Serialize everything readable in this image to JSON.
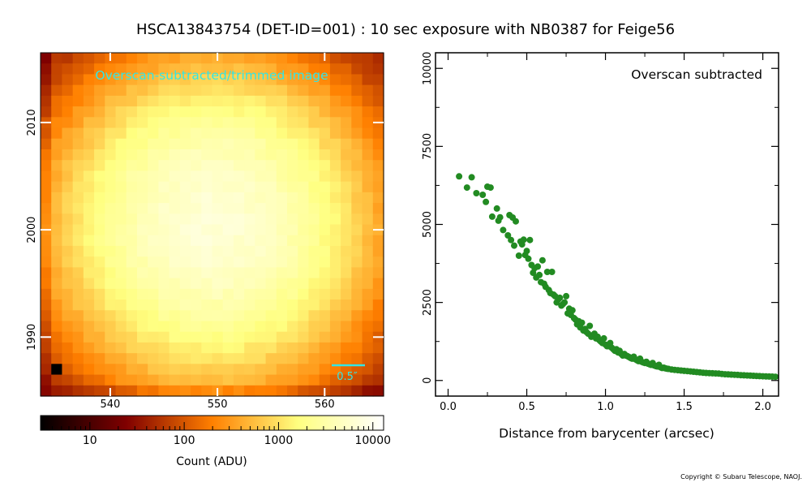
{
  "title": "HSCA13843754 (DET-ID=001) :  10 sec exposure with NB0387 for Feige56",
  "copyright": "Copyright © Subaru Telescope, NAOJ.",
  "colors": {
    "points": "#228b22",
    "image_label": "#33e5e5",
    "scalebar": "#33e5e5",
    "ticks_on_image": "#ffffff"
  },
  "chart_data": [
    {
      "type": "heatmap",
      "annotation": "Overscan-subtracted/trimmed image",
      "scalebar_label": "0.5″",
      "colormap": "afmhot",
      "color_scale": "log",
      "x_range": [
        533.5,
        565.5
      ],
      "y_range": [
        1984.5,
        2016.5
      ],
      "x_ticks": [
        540,
        550,
        560
      ],
      "x_tick_labels": [
        "540",
        "550",
        "560"
      ],
      "y_ticks": [
        1990,
        2000,
        2010
      ],
      "y_tick_labels": [
        "1990",
        "2000",
        "2010"
      ],
      "source_center": [
        549.5,
        2000.5
      ],
      "peak_counts": 6500,
      "background_counts": 25,
      "colorbar": {
        "label": "Count (ADU)",
        "range": [
          3,
          13000
        ],
        "ticks": [
          10,
          100,
          1000,
          10000
        ],
        "tick_labels": [
          "10",
          "100",
          "1000",
          "10000"
        ]
      }
    },
    {
      "type": "scatter",
      "annotation": "Overscan subtracted",
      "xlabel": "Distance from barycenter (arcsec)",
      "ylabel": "",
      "xlim": [
        -0.08,
        2.1
      ],
      "ylim": [
        -500,
        10500
      ],
      "x_ticks": [
        0.0,
        0.5,
        1.0,
        1.5,
        2.0
      ],
      "x_tick_labels": [
        "0.0",
        "0.5",
        "1.0",
        "1.5",
        "2.0"
      ],
      "y_ticks": [
        0,
        2500,
        5000,
        7500,
        10000
      ],
      "y_tick_labels": [
        "0",
        "2500",
        "5000",
        "7500",
        "10000"
      ],
      "grid": false,
      "series": [
        {
          "x": [
            0.07,
            0.12,
            0.15,
            0.18,
            0.22,
            0.24,
            0.25,
            0.27,
            0.28,
            0.31,
            0.32,
            0.33,
            0.35,
            0.38,
            0.39,
            0.4,
            0.41,
            0.42,
            0.43,
            0.45,
            0.46,
            0.47,
            0.48,
            0.49,
            0.5,
            0.51,
            0.52,
            0.53,
            0.54,
            0.55,
            0.56,
            0.57,
            0.58,
            0.59,
            0.6,
            0.61,
            0.62,
            0.63,
            0.64,
            0.65,
            0.66,
            0.67,
            0.68,
            0.69,
            0.7,
            0.71,
            0.72,
            0.73,
            0.74,
            0.75,
            0.76,
            0.77,
            0.78,
            0.79,
            0.8,
            0.81,
            0.82,
            0.83,
            0.84,
            0.85,
            0.86,
            0.87,
            0.88,
            0.89,
            0.9,
            0.91,
            0.92,
            0.93,
            0.94,
            0.95,
            0.96,
            0.97,
            0.98,
            0.99,
            1.0,
            1.01,
            1.02,
            1.03,
            1.04,
            1.05,
            1.06,
            1.07,
            1.08,
            1.09,
            1.1,
            1.11,
            1.12,
            1.13,
            1.14,
            1.15,
            1.16,
            1.17,
            1.18,
            1.19,
            1.2,
            1.21,
            1.22,
            1.23,
            1.24,
            1.25,
            1.26,
            1.27,
            1.28,
            1.29,
            1.3,
            1.31,
            1.32,
            1.33,
            1.34,
            1.35,
            1.36,
            1.37,
            1.38,
            1.39,
            1.4,
            1.42,
            1.44,
            1.46,
            1.48,
            1.5,
            1.52,
            1.54,
            1.56,
            1.58,
            1.6,
            1.62,
            1.64,
            1.66,
            1.68,
            1.7,
            1.72,
            1.74,
            1.76,
            1.78,
            1.8,
            1.82,
            1.84,
            1.86,
            1.88,
            1.9,
            1.92,
            1.94,
            1.96,
            1.98,
            2.0,
            2.02,
            2.04,
            2.06,
            2.08
          ],
          "y": [
            6540,
            6180,
            6510,
            6000,
            5950,
            5720,
            6210,
            6180,
            5250,
            5510,
            5120,
            5230,
            4820,
            4650,
            5300,
            4500,
            5220,
            4320,
            5100,
            4000,
            4450,
            4360,
            4510,
            4020,
            4150,
            3900,
            4500,
            3700,
            3450,
            3600,
            3300,
            3650,
            3380,
            3150,
            3850,
            3100,
            3000,
            3480,
            2900,
            2800,
            3480,
            2750,
            2700,
            2500,
            2600,
            2650,
            2400,
            2450,
            2500,
            2700,
            2150,
            2300,
            2100,
            2250,
            2000,
            1950,
            1800,
            1900,
            1700,
            1850,
            1600,
            1650,
            1550,
            1500,
            1750,
            1400,
            1450,
            1500,
            1350,
            1400,
            1300,
            1250,
            1200,
            1350,
            1150,
            1100,
            1100,
            1200,
            1050,
            1000,
            950,
            1000,
            900,
            950,
            850,
            800,
            850,
            800,
            780,
            750,
            720,
            700,
            760,
            680,
            650,
            620,
            700,
            600,
            580,
            560,
            600,
            540,
            520,
            500,
            560,
            480,
            460,
            450,
            500,
            420,
            400,
            410,
            390,
            380,
            370,
            350,
            340,
            330,
            320,
            310,
            300,
            290,
            280,
            270,
            260,
            250,
            240,
            235,
            230,
            225,
            220,
            210,
            200,
            195,
            190,
            185,
            180,
            170,
            165,
            160,
            155,
            150,
            145,
            140,
            135,
            130,
            128,
            125,
            120
          ]
        }
      ]
    }
  ]
}
